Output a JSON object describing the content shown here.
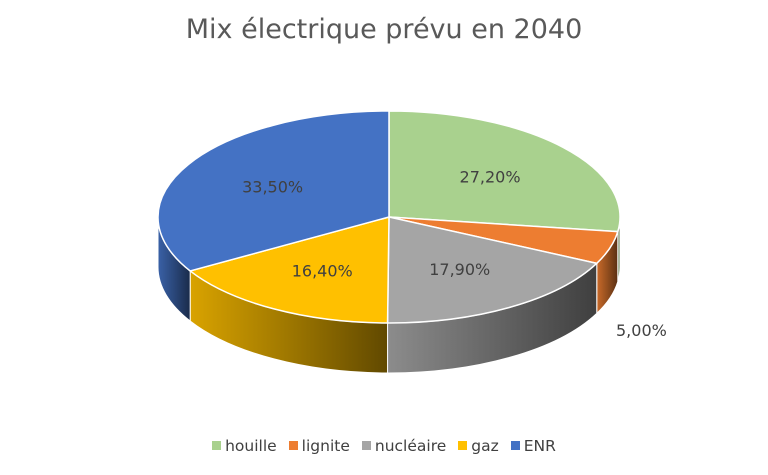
{
  "chart_data": {
    "type": "pie",
    "title": "Mix électrique prévu en 2040",
    "categories": [
      "houille",
      "lignite",
      "nucléaire",
      "gaz",
      "ENR"
    ],
    "values": [
      27.2,
      5.0,
      17.9,
      16.4,
      33.5
    ],
    "data_labels": [
      "27,20%",
      "5,00%",
      "17,90%",
      "16,40%",
      "33,50%"
    ],
    "colors": [
      "#A9D18E",
      "#ED7D31",
      "#A5A5A5",
      "#FFC000",
      "#4472C4"
    ],
    "legend_position": "bottom",
    "style": "3d"
  }
}
